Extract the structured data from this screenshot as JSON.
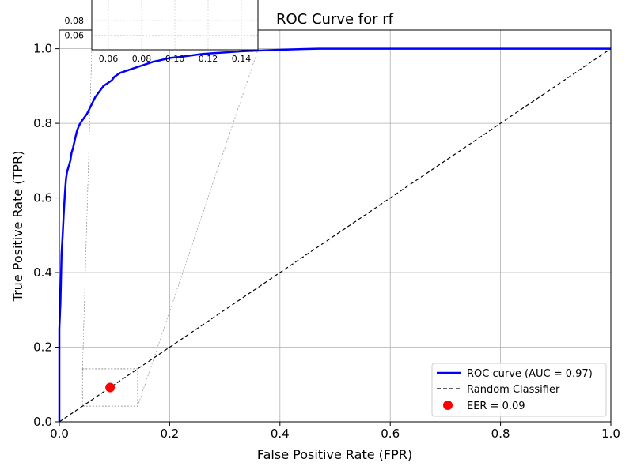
{
  "chart_data": {
    "type": "line",
    "title": "ROC Curve for rf",
    "xlabel": "False Positive Rate (FPR)",
    "ylabel": "True Positive Rate (TPR)",
    "xlim": [
      0,
      1
    ],
    "ylim": [
      0,
      1.05
    ],
    "x_ticks": [
      "0.0",
      "0.2",
      "0.4",
      "0.6",
      "0.8",
      "1.0"
    ],
    "y_ticks": [
      "0.0",
      "0.2",
      "0.4",
      "0.6",
      "0.8",
      "1.0"
    ],
    "grid": true,
    "legend_position": "lower-right",
    "series": [
      {
        "name": "ROC curve (AUC = 0.97)",
        "type": "line",
        "color": "#0000ff",
        "x": [
          0.0,
          0.0,
          0.002,
          0.004,
          0.006,
          0.008,
          0.01,
          0.012,
          0.014,
          0.016,
          0.018,
          0.02,
          0.022,
          0.025,
          0.028,
          0.032,
          0.036,
          0.04,
          0.045,
          0.05,
          0.055,
          0.06,
          0.065,
          0.07,
          0.075,
          0.08,
          0.085,
          0.09,
          0.095,
          0.1,
          0.11,
          0.12,
          0.13,
          0.14,
          0.15,
          0.16,
          0.17,
          0.18,
          0.2,
          0.22,
          0.24,
          0.26,
          0.28,
          0.3,
          0.33,
          0.36,
          0.4,
          0.44,
          0.47,
          1.0
        ],
        "y": [
          0.0,
          0.25,
          0.32,
          0.45,
          0.5,
          0.56,
          0.61,
          0.65,
          0.67,
          0.68,
          0.69,
          0.7,
          0.72,
          0.735,
          0.755,
          0.78,
          0.795,
          0.805,
          0.815,
          0.825,
          0.84,
          0.855,
          0.87,
          0.88,
          0.89,
          0.9,
          0.905,
          0.91,
          0.915,
          0.925,
          0.935,
          0.94,
          0.945,
          0.95,
          0.955,
          0.96,
          0.965,
          0.968,
          0.975,
          0.978,
          0.982,
          0.986,
          0.988,
          0.99,
          0.993,
          0.995,
          0.997,
          0.999,
          1.0,
          1.0
        ]
      },
      {
        "name": "Random Classifier",
        "type": "line",
        "style": "dashed",
        "color": "#000000",
        "x": [
          0,
          1
        ],
        "y": [
          0,
          1
        ]
      },
      {
        "name": "EER = 0.09",
        "type": "scatter",
        "color": "#ff0000",
        "x": [
          0.092
        ],
        "y": [
          0.092
        ]
      }
    ],
    "inset": {
      "xlim": [
        0.05,
        0.15
      ],
      "ylim": [
        0.04,
        0.13
      ],
      "x_ticks": [
        "0.06",
        "0.08",
        "0.10",
        "0.12",
        "0.14"
      ],
      "y_ticks": [
        "0.06",
        "0.08"
      ],
      "zoom_region": {
        "x": [
          0.042,
          0.142
        ],
        "y": [
          0.042,
          0.142
        ]
      }
    }
  }
}
